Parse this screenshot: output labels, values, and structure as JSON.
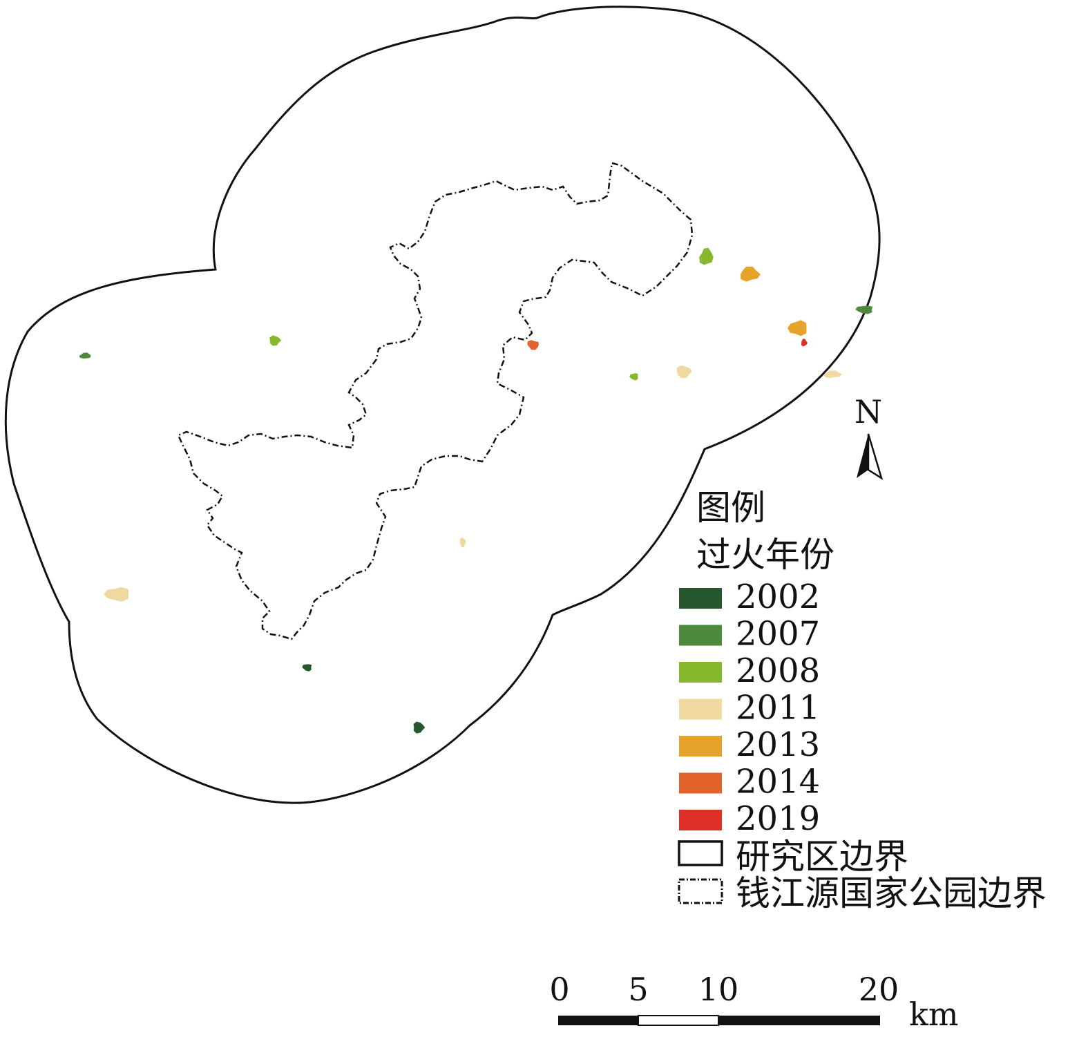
{
  "legend": {
    "title": "图例",
    "subtitle": "过火年份",
    "years": [
      {
        "label": "2002",
        "color": "#27572f"
      },
      {
        "label": "2007",
        "color": "#4e8a3c"
      },
      {
        "label": "2008",
        "color": "#86b82d"
      },
      {
        "label": "2011",
        "color": "#f0d9a0"
      },
      {
        "label": "2013",
        "color": "#e6a32a"
      },
      {
        "label": "2014",
        "color": "#e2622b"
      },
      {
        "label": "2019",
        "color": "#dd2f25"
      }
    ],
    "study_area_label": "研究区边界",
    "park_boundary_label": "钱江源国家公园边界"
  },
  "north_arrow": {
    "label": "N"
  },
  "scale_bar": {
    "ticks": [
      "0",
      "5",
      "10",
      "20"
    ],
    "unit": "km"
  },
  "burn_patches": [
    {
      "year": "2002",
      "shape": "blob",
      "color": "#27572f"
    },
    {
      "year": "2002",
      "shape": "blob",
      "color": "#27572f"
    },
    {
      "year": "2007",
      "shape": "blob",
      "color": "#4e8a3c"
    },
    {
      "year": "2007",
      "shape": "blob",
      "color": "#4e8a3c"
    },
    {
      "year": "2008",
      "shape": "blob",
      "color": "#86b82d"
    },
    {
      "year": "2008",
      "shape": "blob",
      "color": "#86b82d"
    },
    {
      "year": "2008",
      "shape": "blob",
      "color": "#86b82d"
    },
    {
      "year": "2011",
      "shape": "blob",
      "color": "#f0d9a0"
    },
    {
      "year": "2011",
      "shape": "blob",
      "color": "#f0d9a0"
    },
    {
      "year": "2011",
      "shape": "blob",
      "color": "#f0d9a0"
    },
    {
      "year": "2011",
      "shape": "blob",
      "color": "#f0d9a0"
    },
    {
      "year": "2013",
      "shape": "blob",
      "color": "#e6a32a"
    },
    {
      "year": "2013",
      "shape": "blob",
      "color": "#e6a32a"
    },
    {
      "year": "2014",
      "shape": "blob",
      "color": "#e2622b"
    },
    {
      "year": "2019",
      "shape": "blob",
      "color": "#dd2f25"
    }
  ]
}
